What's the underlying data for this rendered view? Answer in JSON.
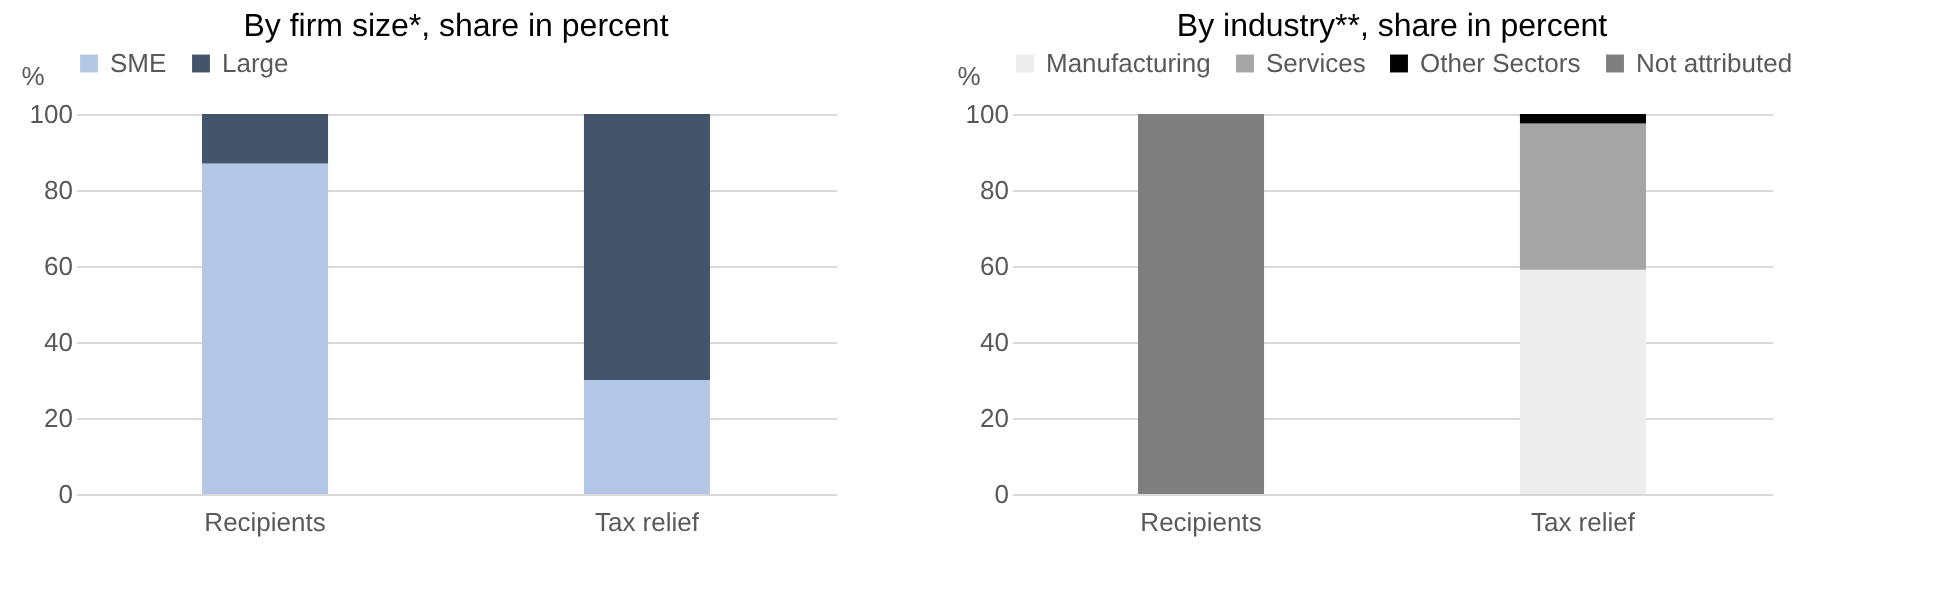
{
  "chart_data": [
    {
      "type": "bar",
      "title": "By firm size*, share in percent",
      "ylabel": "%",
      "categories": [
        "Recipients",
        "Tax relief"
      ],
      "stacked": true,
      "ylim": [
        0,
        100
      ],
      "yticks": [
        0,
        20,
        40,
        60,
        80,
        100
      ],
      "grid": "y",
      "legend": "top",
      "series": [
        {
          "name": "SME",
          "color": "#b4c7e7",
          "values": [
            87,
            30
          ]
        },
        {
          "name": "Large",
          "color": "#44546a",
          "values": [
            13,
            70
          ]
        }
      ]
    },
    {
      "type": "bar",
      "title": "By industry**, share in percent",
      "ylabel": "%",
      "categories": [
        "Recipients",
        "Tax relief"
      ],
      "stacked": true,
      "ylim": [
        0,
        100
      ],
      "yticks": [
        0,
        20,
        40,
        60,
        80,
        100
      ],
      "grid": "y",
      "legend": "top",
      "series": [
        {
          "name": "Manufacturing",
          "color": "#ededed",
          "values": [
            0,
            59
          ]
        },
        {
          "name": "Services",
          "color": "#a5a5a5",
          "values": [
            0,
            38.5
          ]
        },
        {
          "name": "Other Sectors",
          "color": "#000000",
          "values": [
            0,
            2.5
          ]
        },
        {
          "name": "Not attributed",
          "color": "#7f7f7f",
          "values": [
            100,
            0
          ]
        }
      ]
    }
  ]
}
